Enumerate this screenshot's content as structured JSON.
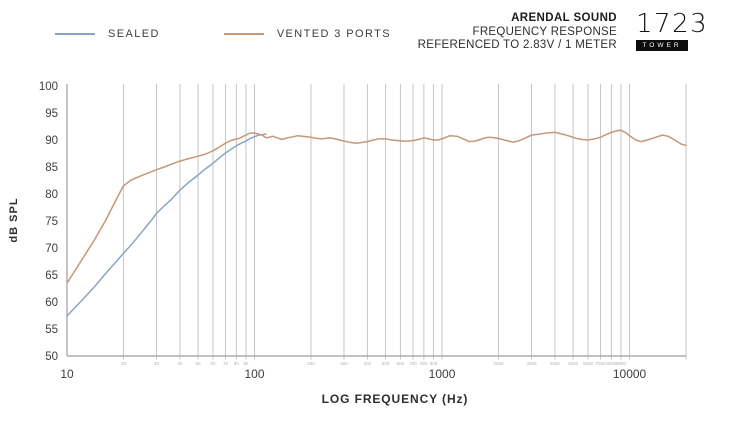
{
  "legend": {
    "items": [
      {
        "label": "SEALED",
        "color": "#88a5c4"
      },
      {
        "label": "VENTED 3 PORTS",
        "color": "#c49878"
      }
    ]
  },
  "header": {
    "brand": "ARENDAL SOUND",
    "line2": "FREQUENCY RESPONSE",
    "line3": "REFERENCED TO 2.83V / 1 METER",
    "logo_text": "1723",
    "logo_badge": "TOWER"
  },
  "chart_data": {
    "type": "line",
    "title": "",
    "xlabel": "LOG FREQUENCY (Hz)",
    "ylabel": "dB SPL",
    "x_scale": "log",
    "xlim": [
      10,
      20000
    ],
    "ylim": [
      50,
      100
    ],
    "y_ticks": [
      50,
      55,
      60,
      65,
      70,
      75,
      80,
      85,
      90,
      95,
      100
    ],
    "x_major_ticks": [
      10,
      100,
      1000,
      10000
    ],
    "x_minor_ticks": [
      20,
      30,
      40,
      50,
      60,
      70,
      80,
      90,
      200,
      300,
      400,
      500,
      600,
      700,
      800,
      900,
      2000,
      3000,
      4000,
      5000,
      6000,
      7000,
      8000,
      9000,
      20000
    ],
    "grid": "vertical-only",
    "legend_position": "top-left",
    "colors": {
      "grid": "#c6c6c6",
      "axis": "#9e9e9e",
      "tick_label": "#3f3f3f",
      "minor_tick_label": "#b3b3b3"
    },
    "series": [
      {
        "name": "SEALED",
        "color": "#88a5c4",
        "note": "merges with vented curve above ~110 Hz",
        "points": [
          [
            10,
            57.4
          ],
          [
            12,
            60.3
          ],
          [
            14,
            62.8
          ],
          [
            16,
            65.2
          ],
          [
            18,
            67.2
          ],
          [
            20,
            69.0
          ],
          [
            22,
            70.6
          ],
          [
            25,
            72.9
          ],
          [
            28,
            75.0
          ],
          [
            30,
            76.4
          ],
          [
            33,
            77.8
          ],
          [
            36,
            79.0
          ],
          [
            40,
            80.7
          ],
          [
            45,
            82.3
          ],
          [
            50,
            83.5
          ],
          [
            55,
            84.7
          ],
          [
            58,
            85.3
          ],
          [
            60,
            85.7
          ],
          [
            63,
            86.3
          ],
          [
            66,
            86.9
          ],
          [
            70,
            87.6
          ],
          [
            75,
            88.3
          ],
          [
            80,
            88.9
          ],
          [
            85,
            89.4
          ],
          [
            90,
            89.8
          ],
          [
            95,
            90.3
          ],
          [
            100,
            90.6
          ],
          [
            105,
            90.9
          ],
          [
            110,
            91.0
          ],
          [
            115,
            91.1
          ]
        ]
      },
      {
        "name": "VENTED 3 PORTS",
        "color": "#c49878",
        "points": [
          [
            10,
            63.5
          ],
          [
            12,
            67.8
          ],
          [
            14,
            71.5
          ],
          [
            16,
            75.0
          ],
          [
            18,
            78.5
          ],
          [
            20,
            81.5
          ],
          [
            22,
            82.6
          ],
          [
            25,
            83.4
          ],
          [
            28,
            84.1
          ],
          [
            30,
            84.5
          ],
          [
            33,
            85.0
          ],
          [
            36,
            85.5
          ],
          [
            40,
            86.1
          ],
          [
            45,
            86.6
          ],
          [
            50,
            87.0
          ],
          [
            55,
            87.4
          ],
          [
            60,
            88.0
          ],
          [
            65,
            88.7
          ],
          [
            70,
            89.4
          ],
          [
            75,
            89.9
          ],
          [
            80,
            90.2
          ],
          [
            83,
            90.3
          ],
          [
            86,
            90.6
          ],
          [
            90,
            90.9
          ],
          [
            95,
            91.3
          ],
          [
            100,
            91.3
          ],
          [
            105,
            91.1
          ],
          [
            110,
            90.9
          ],
          [
            115,
            90.4
          ],
          [
            120,
            90.5
          ],
          [
            125,
            90.7
          ],
          [
            132,
            90.4
          ],
          [
            140,
            90.1
          ],
          [
            150,
            90.4
          ],
          [
            160,
            90.6
          ],
          [
            170,
            90.8
          ],
          [
            180,
            90.7
          ],
          [
            190,
            90.6
          ],
          [
            200,
            90.5
          ],
          [
            215,
            90.3
          ],
          [
            230,
            90.2
          ],
          [
            250,
            90.4
          ],
          [
            270,
            90.2
          ],
          [
            290,
            89.9
          ],
          [
            320,
            89.6
          ],
          [
            350,
            89.4
          ],
          [
            380,
            89.6
          ],
          [
            400,
            89.7
          ],
          [
            430,
            90.0
          ],
          [
            460,
            90.2
          ],
          [
            500,
            90.2
          ],
          [
            540,
            90.0
          ],
          [
            580,
            89.9
          ],
          [
            620,
            89.8
          ],
          [
            660,
            89.8
          ],
          [
            700,
            89.9
          ],
          [
            750,
            90.1
          ],
          [
            800,
            90.4
          ],
          [
            850,
            90.2
          ],
          [
            900,
            90.0
          ],
          [
            950,
            90.0
          ],
          [
            1000,
            90.2
          ],
          [
            1100,
            90.8
          ],
          [
            1200,
            90.7
          ],
          [
            1300,
            90.2
          ],
          [
            1400,
            89.7
          ],
          [
            1500,
            89.8
          ],
          [
            1600,
            90.1
          ],
          [
            1700,
            90.4
          ],
          [
            1800,
            90.5
          ],
          [
            2000,
            90.3
          ],
          [
            2200,
            89.9
          ],
          [
            2400,
            89.6
          ],
          [
            2600,
            89.9
          ],
          [
            2800,
            90.4
          ],
          [
            3000,
            90.9
          ],
          [
            3300,
            91.1
          ],
          [
            3600,
            91.3
          ],
          [
            4000,
            91.4
          ],
          [
            4400,
            91.1
          ],
          [
            4800,
            90.7
          ],
          [
            5200,
            90.3
          ],
          [
            5600,
            90.1
          ],
          [
            6000,
            90.0
          ],
          [
            6500,
            90.2
          ],
          [
            7000,
            90.5
          ],
          [
            7500,
            91.0
          ],
          [
            8000,
            91.4
          ],
          [
            8500,
            91.7
          ],
          [
            9000,
            91.8
          ],
          [
            9500,
            91.4
          ],
          [
            10000,
            90.8
          ],
          [
            10800,
            90.0
          ],
          [
            11500,
            89.7
          ],
          [
            12200,
            89.9
          ],
          [
            13000,
            90.2
          ],
          [
            14000,
            90.6
          ],
          [
            15000,
            90.9
          ],
          [
            16000,
            90.7
          ],
          [
            17000,
            90.2
          ],
          [
            18000,
            89.7
          ],
          [
            19000,
            89.2
          ],
          [
            20000,
            89.0
          ]
        ]
      }
    ]
  }
}
